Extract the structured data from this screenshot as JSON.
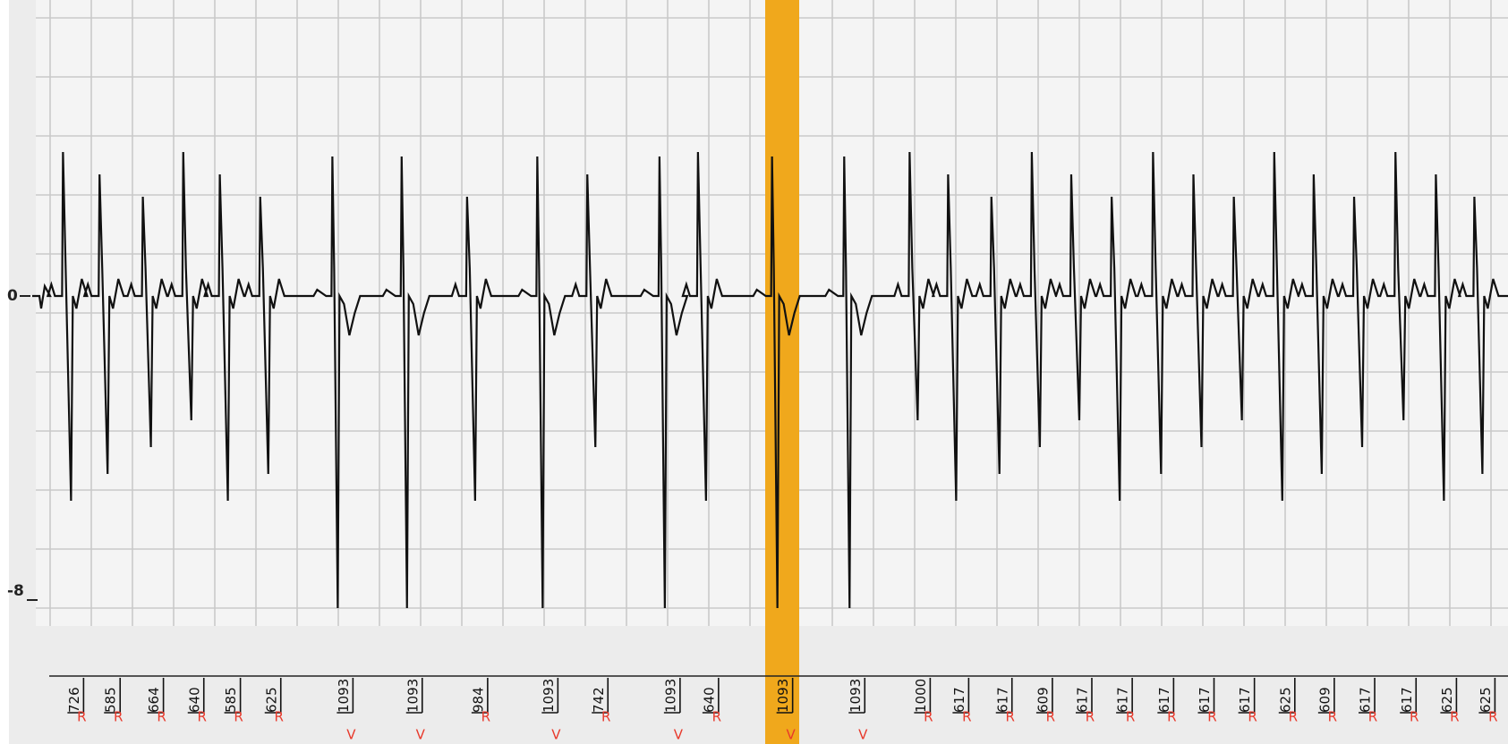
{
  "y_axis": {
    "labels": [
      "0",
      "-8"
    ]
  },
  "beats": [
    {
      "interval": 726,
      "label": "R"
    },
    {
      "interval": 585,
      "label": "R"
    },
    {
      "interval": 664,
      "label": "R"
    },
    {
      "interval": 640,
      "label": "R"
    },
    {
      "interval": 585,
      "label": "R"
    },
    {
      "interval": 625,
      "label": "R"
    },
    {
      "interval": 1093,
      "label": "V"
    },
    {
      "interval": 1093,
      "label": "V"
    },
    {
      "interval": 984,
      "label": "R"
    },
    {
      "interval": 1093,
      "label": "V"
    },
    {
      "interval": 742,
      "label": "R"
    },
    {
      "interval": 1093,
      "label": "V"
    },
    {
      "interval": 640,
      "label": "R"
    },
    {
      "interval": 1093,
      "label": "V"
    },
    {
      "interval": 1093,
      "label": "V"
    },
    {
      "interval": 1000,
      "label": "R"
    },
    {
      "interval": 617,
      "label": "R"
    },
    {
      "interval": 617,
      "label": "R"
    },
    {
      "interval": 609,
      "label": "R"
    },
    {
      "interval": 617,
      "label": "R"
    },
    {
      "interval": 617,
      "label": "R"
    },
    {
      "interval": 617,
      "label": "R"
    },
    {
      "interval": 617,
      "label": "R"
    },
    {
      "interval": 617,
      "label": "R"
    },
    {
      "interval": 625,
      "label": "R"
    },
    {
      "interval": 609,
      "label": "R"
    },
    {
      "interval": 617,
      "label": "R"
    },
    {
      "interval": 617,
      "label": "R"
    },
    {
      "interval": 625,
      "label": "R"
    },
    {
      "interval": 625,
      "label": "R"
    }
  ]
}
